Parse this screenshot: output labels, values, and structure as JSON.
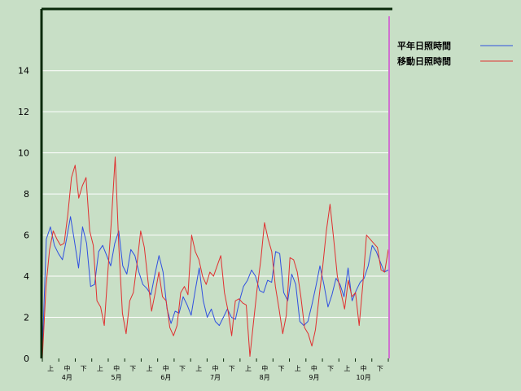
{
  "chart_data": {
    "type": "line",
    "title": "",
    "xlabel": "",
    "ylabel": "",
    "ylim": [
      0,
      17
    ],
    "yticks": [
      0,
      2,
      4,
      6,
      8,
      10,
      12,
      14
    ],
    "grid": true,
    "legend_position": "top-right",
    "period_labels": [
      "上",
      "中",
      "下",
      "上",
      "中",
      "下",
      "上",
      "中",
      "下",
      "上",
      "中",
      "下",
      "上",
      "中",
      "下",
      "上",
      "中",
      "下",
      "上",
      "中",
      "下"
    ],
    "month_labels": [
      "4月",
      "5月",
      "6月",
      "7月",
      "8月",
      "9月",
      "10月"
    ],
    "colors": {
      "background": "#c8dfc6",
      "grid": "#ffffff",
      "axis": "#0a2a0a",
      "marker_line": "#d070d0"
    },
    "series": [
      {
        "name": "平年日照時間",
        "color": "#3050e0",
        "values": [
          0.3,
          5.8,
          6.4,
          5.5,
          5.1,
          4.8,
          5.8,
          6.9,
          5.7,
          4.4,
          6.4,
          5.6,
          3.5,
          3.6,
          5.2,
          5.5,
          5.0,
          4.5,
          5.6,
          6.2,
          4.5,
          4.1,
          5.3,
          5.0,
          4.2,
          3.6,
          3.4,
          3.1,
          4.1,
          5.0,
          4.2,
          2.4,
          1.7,
          2.3,
          2.2,
          3.0,
          2.6,
          2.1,
          3.3,
          4.4,
          2.8,
          2.0,
          2.4,
          1.8,
          1.6,
          2.0,
          2.4,
          2.0,
          1.9,
          2.8,
          3.5,
          3.8,
          4.3,
          4.0,
          3.3,
          3.2,
          3.8,
          3.7,
          5.2,
          5.1,
          3.2,
          2.8,
          4.1,
          3.6,
          1.8,
          1.6,
          1.8,
          2.6,
          3.5,
          4.5,
          3.6,
          2.5,
          3.1,
          3.9,
          3.6,
          3.0,
          4.4,
          2.8,
          3.3,
          3.7,
          3.9,
          4.5,
          5.5,
          5.2,
          4.7,
          4.2,
          4.3
        ]
      },
      {
        "name": "移動日照時間",
        "color": "#e03030",
        "values": [
          0.0,
          3.5,
          5.3,
          6.2,
          5.8,
          5.5,
          5.6,
          7.0,
          8.8,
          9.4,
          7.8,
          8.4,
          8.8,
          6.2,
          5.5,
          2.8,
          2.5,
          1.6,
          4.2,
          6.8,
          9.8,
          5.5,
          2.2,
          1.2,
          2.8,
          3.2,
          4.6,
          6.2,
          5.4,
          3.8,
          2.3,
          3.2,
          4.2,
          3.0,
          2.8,
          1.5,
          1.1,
          1.6,
          3.2,
          3.5,
          3.1,
          6.0,
          5.2,
          4.8,
          4.0,
          3.6,
          4.2,
          4.0,
          4.5,
          5.0,
          3.2,
          2.3,
          1.1,
          2.8,
          2.9,
          2.7,
          2.6,
          0.1,
          1.8,
          3.4,
          4.8,
          6.6,
          5.8,
          5.2,
          3.5,
          2.4,
          1.2,
          2.1,
          4.9,
          4.8,
          4.2,
          3.0,
          1.5,
          1.2,
          0.6,
          1.4,
          3.0,
          4.5,
          6.2,
          7.5,
          5.8,
          4.0,
          3.2,
          2.4,
          3.8,
          3.0,
          3.2,
          1.6,
          3.6,
          6.0,
          5.8,
          5.6,
          5.4,
          4.3,
          4.2,
          5.3
        ]
      }
    ]
  }
}
